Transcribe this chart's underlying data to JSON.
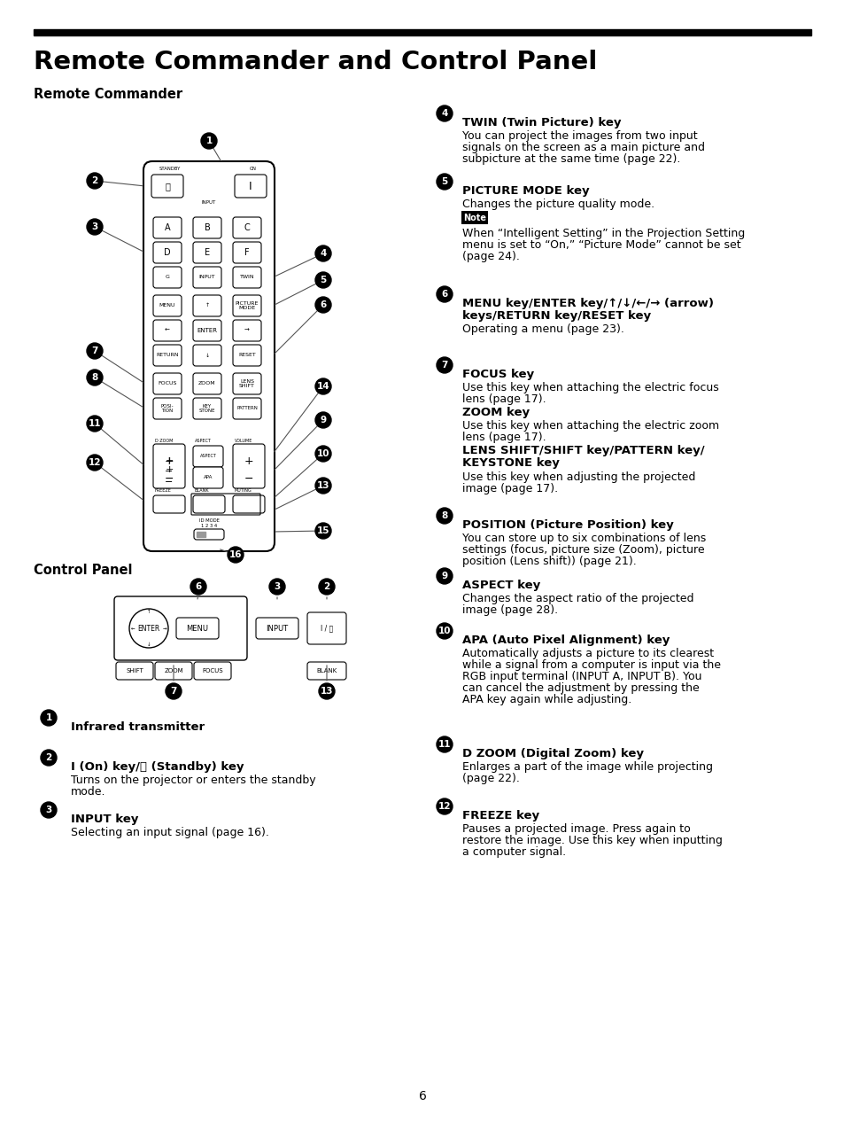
{
  "title": "Remote Commander and Control Panel",
  "page_number": "6",
  "background_color": "#ffffff",
  "text_color": "#000000",
  "section1_title": "Remote Commander",
  "section2_title": "Control Panel",
  "left_items": [
    {
      "num": "1",
      "bold": "Infrared transmitter",
      "text": ""
    },
    {
      "num": "2",
      "bold": "I (On) key/⏻ (Standby) key",
      "text": "Turns on the projector or enters the standby\nmode."
    },
    {
      "num": "3",
      "bold": "INPUT key",
      "text": "Selecting an input signal (page 16)."
    }
  ],
  "right_items": [
    {
      "num": "4",
      "bold": "TWIN (Twin Picture) key",
      "text": "You can project the images from two input\nsignals on the screen as a main picture and\nsubpicture at the same time (page 22)."
    },
    {
      "num": "5",
      "bold": "PICTURE MODE key",
      "text": "Changes the picture quality mode.",
      "note": "When “Intelligent Setting” in the Projection Setting\nmenu is set to “On,” “Picture Mode” cannot be set\n(page 24)."
    },
    {
      "num": "6",
      "bold": "MENU key/ENTER key/↑/↓/←/→ (arrow)\nkeys/RETURN key/RESET key",
      "text": "Operating a menu (page 23)."
    },
    {
      "num": "7",
      "bold": "FOCUS key",
      "text": "Use this key when attaching the electric focus\nlens (page 17).",
      "bold2": "ZOOM key",
      "text2": "Use this key when attaching the electric zoom\nlens (page 17).",
      "bold3": "LENS SHIFT/SHIFT key/PATTERN key/\nKEYSTONE key",
      "text3": "Use this key when adjusting the projected\nimage (page 17)."
    },
    {
      "num": "8",
      "bold": "POSITION (Picture Position) key",
      "text": "You can store up to six combinations of lens\nsettings (focus, picture size (Zoom), picture\nposition (Lens shift)) (page 21)."
    },
    {
      "num": "9",
      "bold": "ASPECT key",
      "text": "Changes the aspect ratio of the projected\nimage (page 28)."
    },
    {
      "num": "10",
      "bold": "APA (Auto Pixel Alignment) key",
      "text": "Automatically adjusts a picture to its clearest\nwhile a signal from a computer is input via the\nRGB input terminal (INPUT A, INPUT B). You\ncan cancel the adjustment by pressing the\nAPA key again while adjusting."
    },
    {
      "num": "11",
      "bold": "D ZOOM (Digital Zoom) key",
      "text": "Enlarges a part of the image while projecting\n(page 22)."
    },
    {
      "num": "12",
      "bold": "FREEZE key",
      "text": "Pauses a projected image. Press again to\nrestore the image. Use this key when inputting\na computer signal."
    }
  ]
}
